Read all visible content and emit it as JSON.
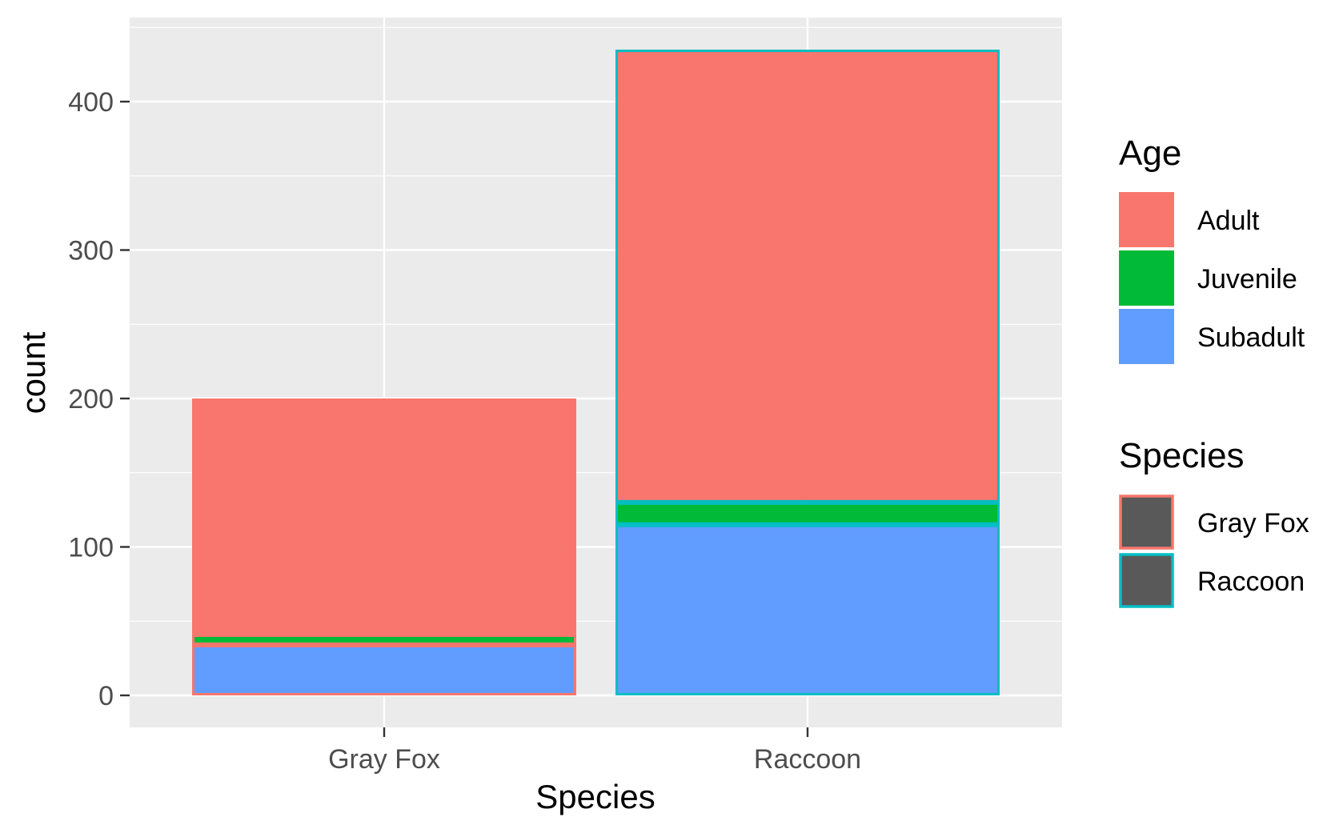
{
  "chart_data": {
    "type": "bar",
    "stacked": true,
    "categories": [
      "Gray Fox",
      "Raccoon"
    ],
    "series": [
      {
        "name": "Subadult",
        "values": [
          34,
          115
        ],
        "color": "#619CFF"
      },
      {
        "name": "Juvenile",
        "values": [
          7,
          15
        ],
        "color": "#00BA38"
      },
      {
        "name": "Adult",
        "values": [
          159,
          305
        ],
        "color": "#F8766D"
      }
    ],
    "outline_colors": {
      "Gray Fox": "#F8766D",
      "Raccoon": "#00BFC4"
    },
    "xlabel": "Species",
    "ylabel": "count",
    "ylim": [
      0,
      450
    ],
    "yticks": [
      0,
      100,
      200,
      300,
      400
    ],
    "grid": true,
    "panel_background": "#EBEBEB",
    "legends": [
      {
        "title": "Age",
        "items": [
          {
            "label": "Adult",
            "fill": "#F8766D"
          },
          {
            "label": "Juvenile",
            "fill": "#00BA38"
          },
          {
            "label": "Subadult",
            "fill": "#619CFF"
          }
        ]
      },
      {
        "title": "Species",
        "items": [
          {
            "label": "Gray Fox",
            "fill": "#595959",
            "outline": "#F8766D"
          },
          {
            "label": "Raccoon",
            "fill": "#595959",
            "outline": "#00BFC4"
          }
        ]
      }
    ],
    "legend_position": "right"
  }
}
